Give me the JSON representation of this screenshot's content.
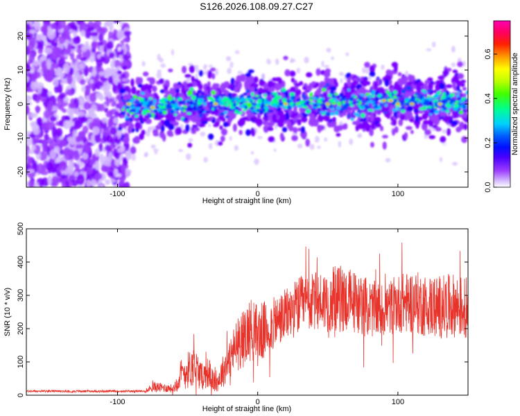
{
  "title": "S126.2026.108.09.27.C27",
  "chart_data": [
    {
      "type": "heatmap",
      "title": "S126.2026.108.09.27.C27",
      "xlabel": "Height of straight line (km)",
      "ylabel": "Frequency (Hz)",
      "xlim": [
        -165,
        150
      ],
      "ylim": [
        -24.5,
        24.5
      ],
      "x_ticks": [
        -100,
        0,
        100
      ],
      "y_ticks": [
        -20,
        -10,
        0,
        10,
        20
      ],
      "colorbar": {
        "label": "Normalized spectral amplitude",
        "range": [
          0.0,
          0.75
        ],
        "ticks": [
          0.0,
          0.2,
          0.4,
          0.6
        ],
        "colors": [
          "#ffffff",
          "#d4b8ff",
          "#9b3cff",
          "#7a00ff",
          "#2000ff",
          "#0040ff",
          "#00c0ff",
          "#00ff90",
          "#40ff00",
          "#c0ff00",
          "#ffff00",
          "#ffa000",
          "#ff2000",
          "#ff0060",
          "#ff00b0"
        ]
      },
      "signal_band": {
        "x_start": -100,
        "center_hz": 0,
        "half_width_hz": 5,
        "description_points": [
          [
            -100,
            -1
          ],
          [
            -50,
            0
          ],
          [
            0,
            0
          ],
          [
            50,
            0
          ],
          [
            100,
            1
          ],
          [
            150,
            0
          ]
        ]
      }
    },
    {
      "type": "line",
      "xlabel": "Height of straight line (km)",
      "ylabel": "SNR (10 * v/v)",
      "xlim": [
        -165,
        150
      ],
      "ylim": [
        0,
        500
      ],
      "x_ticks": [
        -100,
        0,
        100
      ],
      "y_ticks": [
        0,
        100,
        200,
        300,
        400,
        500
      ],
      "series": [
        {
          "name": "SNR",
          "color": "#e8332b",
          "envelope": {
            "x": [
              -165,
              -80,
              -75,
              -60,
              -55,
              -45,
              -40,
              -35,
              -30,
              -25,
              -20,
              -15,
              -10,
              -5,
              0,
              10,
              20,
              30,
              40,
              50,
              60,
              70,
              80,
              90,
              100,
              110,
              120,
              130,
              140,
              150
            ],
            "mean": [
              12,
              12,
              25,
              20,
              60,
              90,
              55,
              70,
              30,
              70,
              110,
              150,
              170,
              200,
              180,
              210,
              240,
              270,
              280,
              285,
              290,
              280,
              260,
              255,
              275,
              280,
              270,
              265,
              270,
              260
            ],
            "spread": [
              4,
              4,
              20,
              15,
              60,
              80,
              50,
              60,
              30,
              60,
              80,
              100,
              110,
              120,
              120,
              100,
              100,
              110,
              110,
              120,
              130,
              120,
              110,
              100,
              110,
              120,
              120,
              120,
              120,
              120
            ]
          }
        }
      ]
    }
  ]
}
